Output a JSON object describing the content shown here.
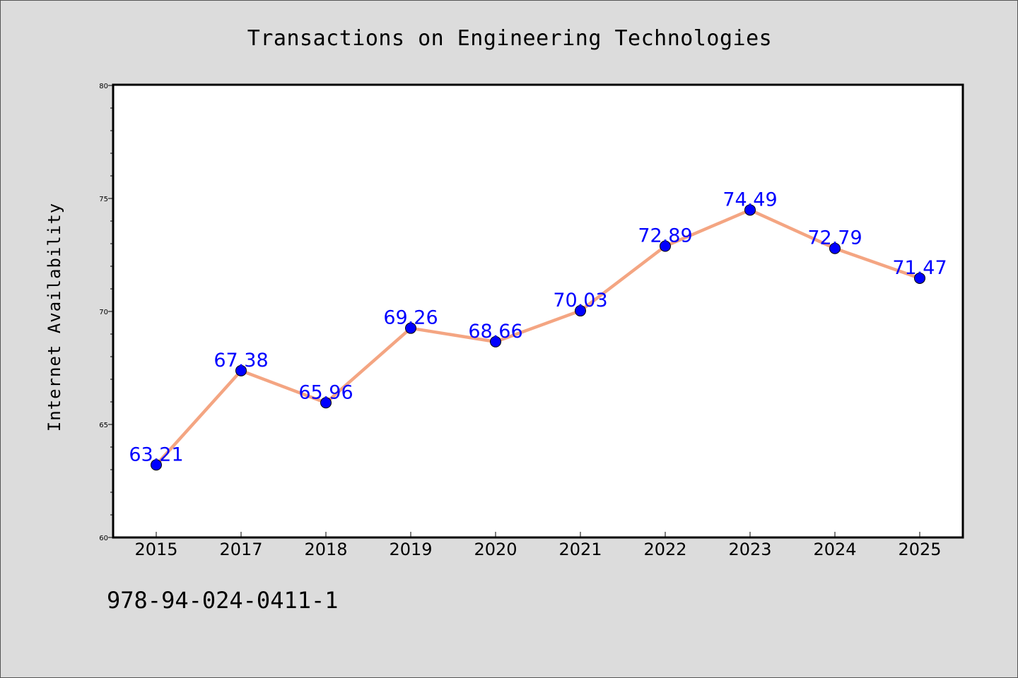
{
  "chart_data": {
    "type": "line",
    "title": "Transactions on Engineering Technologies",
    "xlabel": "",
    "ylabel": "Internet Availability",
    "categories": [
      "2015",
      "2017",
      "2018",
      "2019",
      "2020",
      "2021",
      "2022",
      "2023",
      "2024",
      "2025"
    ],
    "series": [
      {
        "values": [
          63.21,
          67.38,
          65.96,
          69.26,
          68.66,
          70.03,
          72.89,
          74.49,
          72.79,
          71.47
        ],
        "labels": [
          "63.21",
          "67.38",
          "65.96",
          "69.26",
          "68.66",
          "70.03",
          "72.89",
          "74.49",
          "72.79",
          "71.47"
        ]
      }
    ],
    "ylim": [
      60,
      80
    ],
    "yticks": [
      "60",
      "65",
      "70",
      "75",
      "80"
    ],
    "grid": false,
    "legend": "none",
    "colors": {
      "line": "#f4a582",
      "marker": "#0000ff",
      "label": "#0000ff",
      "background": "#dcdcdc",
      "plot_bg": "#ffffff"
    }
  },
  "footnote": "978-94-024-0411-1"
}
